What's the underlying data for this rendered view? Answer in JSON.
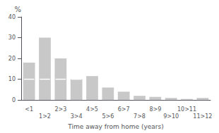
{
  "chart_data": {
    "type": "bar",
    "categories": [
      "<1",
      "1>2",
      "2>3",
      "3>4",
      "4>5",
      "5>6",
      "6>7",
      "7>8",
      "8>9",
      "9>10",
      "10>11",
      "11>12"
    ],
    "values": [
      18,
      30,
      20,
      10,
      11.5,
      6,
      4,
      2,
      1.5,
      1,
      0.5,
      1
    ],
    "inner_line_values": [
      10,
      10,
      10,
      10,
      null,
      null,
      null,
      null,
      null,
      null,
      null,
      null
    ],
    "color": "#c8c8c8",
    "xlabel": "Time away from home (years)",
    "ylabel": "%",
    "ylim": [
      0,
      40
    ],
    "yticks": [
      0,
      10,
      20,
      30,
      40
    ],
    "grid": false
  }
}
